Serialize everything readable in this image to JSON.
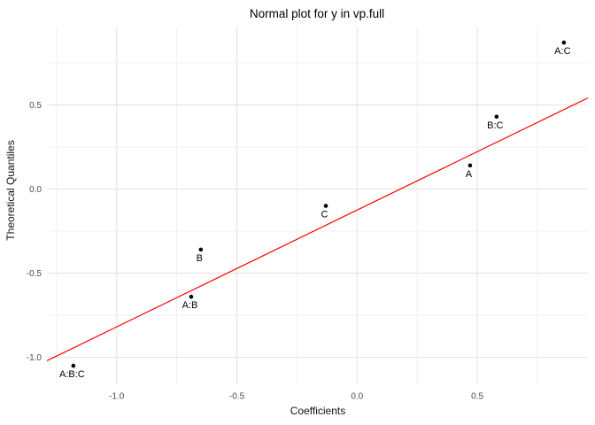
{
  "title": "Normal plot for y in vp.full",
  "axes": {
    "x_label": "Coefficients",
    "y_label": "Theoretical Quantiles"
  },
  "colors": {
    "background": "#FFFFFF",
    "reference_line": "#FF0000",
    "grid_major": "#E2E2E2",
    "grid_minor": "#F0F0F0",
    "tick_text": "#4D4D4D",
    "point": "#000000",
    "point_label": "#000000"
  },
  "chart_data": {
    "type": "scatter",
    "title": "Normal plot for y in vp.full",
    "xlabel": "Coefficients",
    "ylabel": "Theoretical Quantiles",
    "xlim": [
      -1.29,
      0.96
    ],
    "ylim": [
      -1.16,
      0.96
    ],
    "grid": "major+minor",
    "legend": "none",
    "x_major_ticks": [
      {
        "value": -1.0,
        "label": "-1.0"
      },
      {
        "value": -0.5,
        "label": "-0.5"
      },
      {
        "value": 0.0,
        "label": "0.0"
      },
      {
        "value": 0.5,
        "label": "0.5"
      }
    ],
    "y_major_ticks": [
      {
        "value": 0.5,
        "label": "0.5"
      },
      {
        "value": 0.0,
        "label": "0.0"
      },
      {
        "value": -0.5,
        "label": "-0.5"
      },
      {
        "value": -1.0,
        "label": "-1.0"
      }
    ],
    "x_minor_ticks": [
      -1.25,
      -0.75,
      -0.25,
      0.25,
      0.75
    ],
    "y_minor_ticks": [
      0.75,
      0.25,
      -0.25,
      -0.75
    ],
    "points": [
      {
        "label": "A:C",
        "x": 0.86,
        "y": 0.87
      },
      {
        "label": "B:C",
        "x": 0.58,
        "y": 0.43
      },
      {
        "label": "A",
        "x": 0.47,
        "y": 0.14
      },
      {
        "label": "C",
        "x": -0.13,
        "y": -0.1
      },
      {
        "label": "B",
        "x": -0.65,
        "y": -0.36
      },
      {
        "label": "A:B",
        "x": -0.69,
        "y": -0.64
      },
      {
        "label": "A:B:C",
        "x": -1.18,
        "y": -1.05
      }
    ],
    "reference_line": {
      "slope": 0.694,
      "intercept": -0.125
    }
  }
}
